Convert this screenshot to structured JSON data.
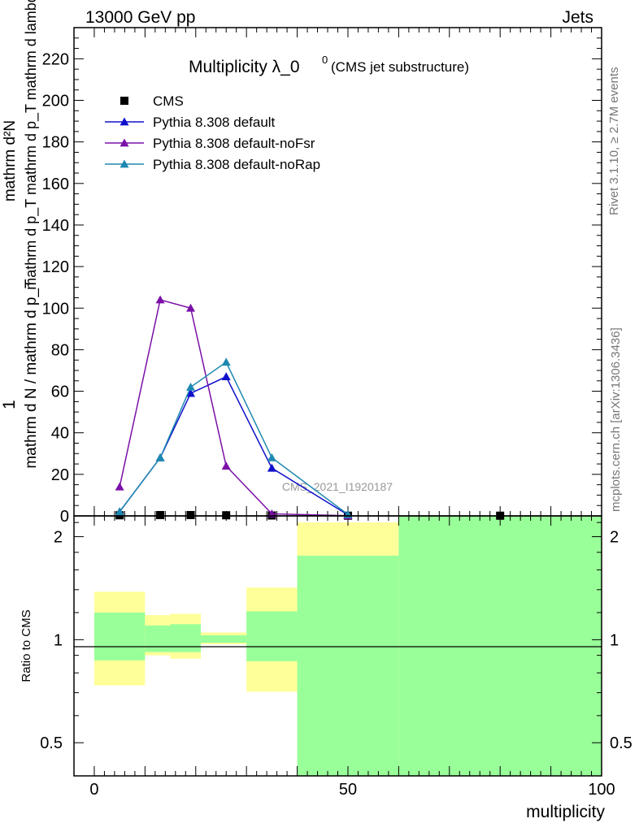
{
  "header": {
    "left": "13000 GeV pp",
    "right": "Jets"
  },
  "side_labels": {
    "rivet": "Rivet 3.1.10, ≥ 2.7M events",
    "mcplots": "mcplots.cern.ch [arXiv:1306.3436]"
  },
  "chart_data": {
    "type": "line",
    "title_main": "Multiplicity λ_0",
    "title_sup": "0",
    "title_sub": "(CMS jet substructure)",
    "watermark": "CMS_2021_I1920187",
    "xlabel": "multiplicity",
    "ylabel": {
      "numerator": "mathrm d²N",
      "denominator": "mathrm d p_T mathrm d p_T mathrm d lambda",
      "prefix_num": "1",
      "prefix_den": "mathrm d N / mathrm d p_T"
    },
    "ratio_ylabel": "Ratio to CMS",
    "xlim": [
      -4,
      100
    ],
    "ylim": [
      0,
      235
    ],
    "ratio_ylim": [
      0.4,
      2.3
    ],
    "xticks": [
      0,
      50,
      100
    ],
    "yticks": [
      0,
      20,
      40,
      60,
      80,
      100,
      120,
      140,
      160,
      180,
      200,
      220
    ],
    "ratio_yticks": [
      0.5,
      1,
      2
    ],
    "legend_position": "top-left",
    "series": [
      {
        "name": "CMS",
        "color": "#000000",
        "marker": "square",
        "x": [
          5,
          13,
          19,
          26,
          35,
          50,
          80
        ],
        "y": [
          0.3,
          0.4,
          0.4,
          0.3,
          0.2,
          0.1,
          0.1
        ]
      },
      {
        "name": "Pythia 8.308 default",
        "color": "#1010cc",
        "marker": "triangle",
        "x": [
          5,
          13,
          19,
          26,
          35,
          50
        ],
        "y": [
          2,
          28,
          59,
          67,
          23,
          0.5
        ]
      },
      {
        "name": "Pythia 8.308 default-noFsr",
        "color": "#7a10a8",
        "marker": "triangle",
        "x": [
          5,
          13,
          19,
          26,
          35,
          50
        ],
        "y": [
          14,
          104,
          100,
          24,
          1,
          0.1
        ]
      },
      {
        "name": "Pythia 8.308 default-noRap",
        "color": "#1e88b0",
        "marker": "triangle",
        "x": [
          5,
          13,
          19,
          26,
          35,
          50
        ],
        "y": [
          2,
          28,
          62,
          74,
          28,
          0.7
        ]
      }
    ],
    "ratio_bands": [
      {
        "x0": 0,
        "x1": 10,
        "stat_sys": [
          0.735,
          1.38
        ],
        "stat": [
          0.87,
          1.2
        ]
      },
      {
        "x0": 10,
        "x1": 15,
        "stat_sys": [
          0.9,
          1.18
        ],
        "stat": [
          0.92,
          1.1
        ]
      },
      {
        "x0": 15,
        "x1": 21,
        "stat_sys": [
          0.88,
          1.19
        ],
        "stat": [
          0.92,
          1.11
        ]
      },
      {
        "x0": 21,
        "x1": 30,
        "stat_sys": [
          0.97,
          1.05
        ],
        "stat": [
          0.98,
          1.03
        ]
      },
      {
        "x0": 30,
        "x1": 40,
        "stat_sys": [
          0.705,
          1.42
        ],
        "stat": [
          0.865,
          1.21
        ]
      },
      {
        "x0": 40,
        "x1": 60,
        "stat_sys": [
          0.4,
          2.2
        ],
        "stat": [
          0.4,
          1.76
        ]
      },
      {
        "x0": 60,
        "x1": 100,
        "stat_sys": [
          0.4,
          2.3
        ],
        "stat": [
          0.4,
          2.3
        ]
      }
    ],
    "band_colors": {
      "stat_sys": "#ffff99",
      "stat": "#99ff99"
    }
  }
}
